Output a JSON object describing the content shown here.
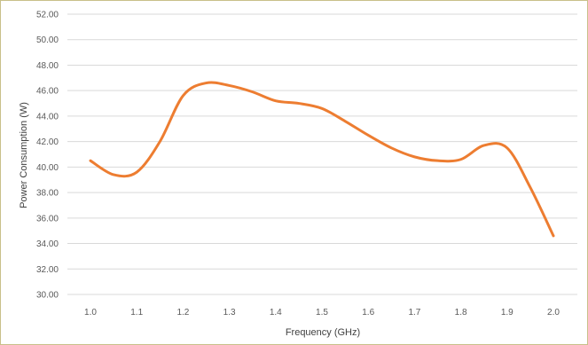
{
  "chart_data": {
    "type": "line",
    "title": "",
    "xlabel": "Frequency (GHz)",
    "ylabel": "Power Consumption (W)",
    "x_ticks": [
      "1.0",
      "1.1",
      "1.2",
      "1.3",
      "1.4",
      "1.5",
      "1.6",
      "1.7",
      "1.8",
      "1.9",
      "2.0"
    ],
    "y_ticks": [
      "30.00",
      "32.00",
      "34.00",
      "36.00",
      "38.00",
      "40.00",
      "42.00",
      "44.00",
      "46.00",
      "48.00",
      "50.00",
      "52.00"
    ],
    "xlim": [
      1.0,
      2.0
    ],
    "ylim": [
      30,
      52
    ],
    "grid": "horizontal",
    "smooth": true,
    "series": [
      {
        "color": "#ed7d31",
        "x": [
          1.0,
          1.05,
          1.1,
          1.15,
          1.2,
          1.25,
          1.3,
          1.35,
          1.4,
          1.45,
          1.5,
          1.55,
          1.6,
          1.65,
          1.7,
          1.75,
          1.8,
          1.85,
          1.9,
          1.95,
          2.0
        ],
        "y": [
          40.5,
          39.4,
          39.6,
          42.0,
          45.6,
          46.6,
          46.4,
          45.9,
          45.2,
          45.0,
          44.6,
          43.6,
          42.5,
          41.5,
          40.8,
          40.5,
          40.6,
          41.7,
          41.5,
          38.4,
          34.6
        ]
      }
    ]
  },
  "colors": {
    "gridline": "#d9d9d9",
    "frame_border": "#c9c08a"
  }
}
